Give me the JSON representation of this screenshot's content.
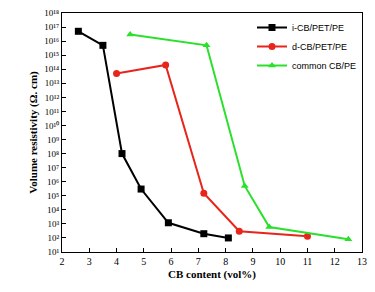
{
  "chart_data": {
    "type": "line",
    "x_label": "CB content (vol%)",
    "y_label": "Volume resistivity (Ω. cm)",
    "log": "y",
    "grid": false,
    "legend": "top right",
    "xlim": [
      2,
      13
    ],
    "xticks": [
      2,
      3,
      4,
      5,
      6,
      7,
      8,
      9,
      10,
      11,
      12,
      13
    ],
    "ylim": [
      10,
      1e+18
    ],
    "yticks": [
      {
        "value": 10,
        "label": "10¹"
      },
      {
        "value": 100,
        "label": "10²"
      },
      {
        "value": 1000,
        "label": "10³"
      },
      {
        "value": 10000,
        "label": "10⁴"
      },
      {
        "value": 100000,
        "label": "10⁵"
      },
      {
        "value": 1000000,
        "label": "10⁶"
      },
      {
        "value": 10000000,
        "label": "10⁷"
      },
      {
        "value": 100000000,
        "label": "10⁸"
      },
      {
        "value": 1000000000,
        "label": "10⁹"
      },
      {
        "value": 10000000000,
        "label": "10¹⁰"
      },
      {
        "value": 100000000000,
        "label": "10¹¹"
      },
      {
        "value": 1000000000000,
        "label": "10¹²"
      },
      {
        "value": 10000000000000,
        "label": "10¹³"
      },
      {
        "value": 100000000000000,
        "label": "10¹⁴"
      },
      {
        "value": 1000000000000000,
        "label": "10¹⁵"
      },
      {
        "value": 10000000000000000,
        "label": "10¹⁶"
      },
      {
        "value": 100000000000000000,
        "label": "10¹⁷"
      },
      {
        "value": 1000000000000000000,
        "label": "10¹⁸"
      }
    ],
    "series": [
      {
        "name": "i-CB/PET/PE",
        "color": "#000000",
        "marker": "square",
        "x": [
          2.6,
          3.5,
          4.2,
          4.9,
          5.9,
          7.2,
          8.1
        ],
        "values": [
          5e+16,
          5000000000000000.0,
          100000000.0,
          300000.0,
          1200,
          200,
          100
        ]
      },
      {
        "name": "d-CB/PET/PE",
        "color": "#e8251b",
        "marker": "circle",
        "x": [
          4.0,
          5.8,
          7.2,
          8.5,
          11.0
        ],
        "values": [
          50000000000000.0,
          200000000000000.0,
          150000,
          300,
          130
        ]
      },
      {
        "name": "common CB/PE",
        "color": "#2be02b",
        "marker": "triangle-up",
        "x": [
          4.5,
          7.3,
          8.7,
          9.6,
          12.5
        ],
        "values": [
          3e+16,
          5000000000000000.0,
          500000,
          600,
          80
        ]
      }
    ]
  }
}
